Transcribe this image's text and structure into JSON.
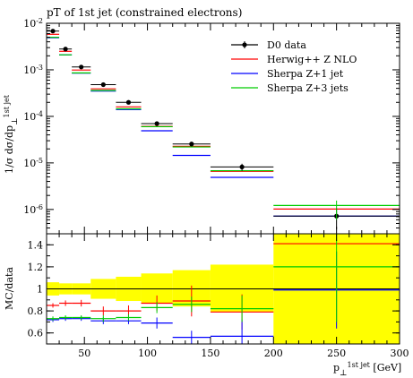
{
  "chart_data": [
    {
      "type": "scatter",
      "title": "pT of 1st jet (constrained electrons)",
      "ylabel": "1/σ dσ/dp_⊥^{1st jet}",
      "yscale": "log",
      "ylim": [
        3e-07,
        0.01
      ],
      "xlim": [
        20,
        300
      ],
      "x_bins": [
        [
          20,
          30
        ],
        [
          30,
          40
        ],
        [
          40,
          55
        ],
        [
          55,
          75
        ],
        [
          75,
          95
        ],
        [
          95,
          120
        ],
        [
          120,
          150
        ],
        [
          150,
          200
        ],
        [
          200,
          300
        ]
      ],
      "y_ticks": [
        {
          "value": 0.01,
          "label": "10^-2"
        },
        {
          "value": 0.001,
          "label": "10^-3"
        },
        {
          "value": 0.0001,
          "label": "10^-4"
        },
        {
          "value": 1e-05,
          "label": "10^-5"
        },
        {
          "value": 1e-06,
          "label": "10^-6"
        }
      ],
      "legend_position": "top-right",
      "series": [
        {
          "name": "D0 data",
          "color": "#000000",
          "kind": "points",
          "values": [
            0.0068,
            0.0028,
            0.00115,
            0.00048,
            0.0002,
            7e-05,
            2.55e-05,
            8.2e-06,
            7.2e-07
          ],
          "errors": [
            0.0004,
            0.00015,
            6e-05,
            3e-05,
            1.4e-05,
            6e-06,
            2.8e-06,
            1.4e-06,
            3.5e-07
          ]
        },
        {
          "name": "Herwig++ Z NLO",
          "color": "#ff0000",
          "kind": "hist",
          "values": [
            0.0058,
            0.0025,
            0.00099,
            0.00039,
            0.00016,
            6.1e-05,
            2.27e-05,
            6.6e-06,
            1.02e-06
          ]
        },
        {
          "name": "Sherpa Z+1 jet",
          "color": "#0000ff",
          "kind": "hist",
          "values": [
            0.0049,
            0.0021,
            0.00085,
            0.00035,
            0.00014,
            4.9e-05,
            1.45e-05,
            4.9e-06,
            7.2e-07
          ]
        },
        {
          "name": "Sherpa Z+3 jets",
          "color": "#00cc00",
          "kind": "hist",
          "values": [
            0.005,
            0.0021,
            0.00086,
            0.00036,
            0.000145,
            6e-05,
            2.2e-05,
            6.8e-06,
            1.22e-06
          ]
        }
      ]
    },
    {
      "type": "scatter",
      "ylabel": "MC/data",
      "xlabel": "p_⊥^{1st jet} [GeV]",
      "xlim": [
        20,
        300
      ],
      "ylim": [
        0.5,
        1.5
      ],
      "x_ticks": [
        50,
        100,
        150,
        200,
        250,
        300
      ],
      "y_ticks": [
        0.6,
        0.8,
        1,
        1.2,
        1.4
      ],
      "band": {
        "color": "#ffff00",
        "lower": [
          0.94,
          0.95,
          0.95,
          0.91,
          0.89,
          0.87,
          0.84,
          0.79,
          0.5
        ],
        "upper": [
          1.06,
          1.05,
          1.05,
          1.09,
          1.11,
          1.14,
          1.17,
          1.22,
          1.5
        ]
      },
      "series": [
        {
          "name": "Herwig++ Z NLO",
          "color": "#ff0000",
          "values": [
            0.85,
            0.87,
            0.87,
            0.8,
            0.8,
            0.87,
            0.89,
            0.79,
            1.41
          ],
          "errors": [
            0.02,
            0.025,
            0.03,
            0.04,
            0.05,
            0.07,
            0.14,
            0.16,
            0.0
          ]
        },
        {
          "name": "Sherpa Z+1 jet",
          "color": "#0000ff",
          "values": [
            0.72,
            0.73,
            0.73,
            0.71,
            0.71,
            0.69,
            0.56,
            0.57,
            0.99
          ],
          "errors": [
            0.02,
            0.02,
            0.02,
            0.03,
            0.03,
            0.05,
            0.06,
            0.15,
            0.35
          ]
        },
        {
          "name": "Sherpa Z+3 jets",
          "color": "#00cc00",
          "values": [
            0.73,
            0.74,
            0.74,
            0.73,
            0.74,
            0.83,
            0.86,
            0.82,
            1.2
          ],
          "errors": [
            0.02,
            0.02,
            0.02,
            0.03,
            0.03,
            0.05,
            0.07,
            0.12,
            0.5
          ]
        }
      ]
    }
  ]
}
